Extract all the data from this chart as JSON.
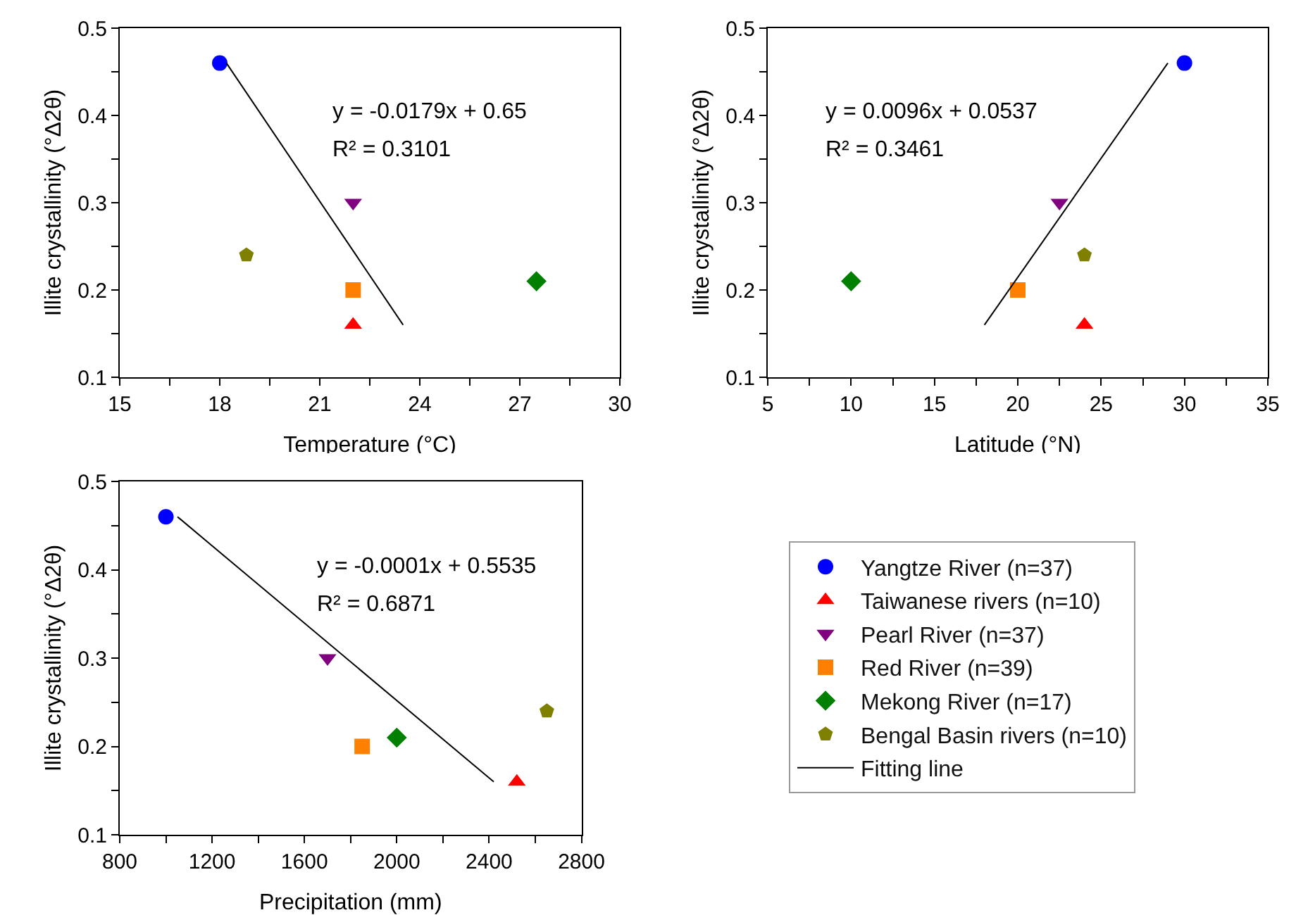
{
  "chart_data": [
    {
      "type": "scatter",
      "xlabel": "Temperature (°C)",
      "ylabel": "Illite crystallinity (°Δ2θ)",
      "xlim": [
        15,
        30
      ],
      "ylim": [
        0.1,
        0.5
      ],
      "xticks": [
        15,
        {
          "value": 16.5,
          "label": null
        },
        18,
        {
          "value": 19.5,
          "label": null
        },
        21,
        {
          "value": 22.5,
          "label": null
        },
        24,
        {
          "value": 25.5,
          "label": null
        },
        27,
        {
          "value": 28.5,
          "label": null
        },
        30
      ],
      "yticks": [
        0.1,
        {
          "value": 0.15,
          "label": null
        },
        0.2,
        {
          "value": 0.25,
          "label": null
        },
        0.3,
        {
          "value": 0.35,
          "label": null
        },
        0.4,
        {
          "value": 0.45,
          "label": null
        },
        0.5
      ],
      "grid": false,
      "legend": false,
      "annotations": [
        "y = -0.0179x + 0.65",
        "R² = 0.3101"
      ],
      "series": [
        {
          "color": "#0000ff",
          "marker": "circle",
          "x": [
            18
          ],
          "values": [
            0.46
          ]
        },
        {
          "color": "#ff0000",
          "marker": "triangle",
          "x": [
            22
          ],
          "values": [
            0.16
          ]
        },
        {
          "color": "#800080",
          "marker": "triangle-down",
          "x": [
            22
          ],
          "values": [
            0.3
          ]
        },
        {
          "color": "#ff8000",
          "marker": "square",
          "x": [
            22
          ],
          "values": [
            0.2
          ]
        },
        {
          "color": "#008000",
          "marker": "diamond",
          "x": [
            27.5
          ],
          "values": [
            0.21
          ]
        },
        {
          "color": "#808000",
          "x": [
            18.8
          ],
          "values": [
            0.24
          ]
        },
        {
          "type": "line",
          "color": "#000000",
          "marker": "none",
          "x": [
            18.2,
            23.5
          ],
          "values": [
            0.46,
            0.16
          ]
        }
      ]
    },
    {
      "type": "scatter",
      "xlabel": "Latitude (°N)",
      "ylabel": "Illite crystallinity (°Δ2θ)",
      "xlim": [
        5,
        35
      ],
      "ylim": [
        0.1,
        0.5
      ],
      "xticks": [
        5,
        {
          "value": 7.5,
          "label": null
        },
        10,
        {
          "value": 12.5,
          "label": null
        },
        15,
        {
          "value": 17.5,
          "label": null
        },
        20,
        {
          "value": 22.5,
          "label": null
        },
        25,
        {
          "value": 27.5,
          "label": null
        },
        30,
        {
          "value": 32.5,
          "label": null
        },
        35
      ],
      "yticks": [
        0.1,
        {
          "value": 0.15,
          "label": null
        },
        0.2,
        {
          "value": 0.25,
          "label": null
        },
        0.3,
        {
          "value": 0.35,
          "label": null
        },
        0.4,
        {
          "value": 0.45,
          "label": null
        },
        0.5
      ],
      "grid": false,
      "legend": false,
      "annotations": [
        "y = 0.0096x + 0.0537",
        "R² = 0.3461"
      ],
      "series": [
        {
          "color": "#0000ff",
          "marker": "circle",
          "x": [
            30
          ],
          "values": [
            0.46
          ]
        },
        {
          "color": "#ff0000",
          "marker": "triangle",
          "x": [
            24
          ],
          "values": [
            0.16
          ]
        },
        {
          "color": "#800080",
          "marker": "triangle-down",
          "x": [
            22.5
          ],
          "values": [
            0.3
          ]
        },
        {
          "color": "#ff8000",
          "marker": "square",
          "x": [
            20
          ],
          "values": [
            0.2
          ]
        },
        {
          "color": "#008000",
          "marker": "diamond",
          "x": [
            10
          ],
          "values": [
            0.21
          ]
        },
        {
          "color": "#808000",
          "x": [
            24
          ],
          "values": [
            0.24
          ]
        },
        {
          "type": "line",
          "color": "#000000",
          "marker": "none",
          "x": [
            18,
            29
          ],
          "values": [
            0.16,
            0.46
          ]
        }
      ]
    },
    {
      "type": "scatter",
      "xlabel": "Precipitation (mm)",
      "ylabel": "Illite crystallinity (°Δ2θ)",
      "xlim": [
        800,
        2800
      ],
      "ylim": [
        0.1,
        0.5
      ],
      "xticks": [
        800,
        {
          "value": 1000,
          "label": null
        },
        1200,
        {
          "value": 1400,
          "label": null
        },
        1600,
        {
          "value": 1800,
          "label": null
        },
        2000,
        {
          "value": 2200,
          "label": null
        },
        2400,
        {
          "value": 2600,
          "label": null
        },
        2800
      ],
      "yticks": [
        0.1,
        {
          "value": 0.15,
          "label": null
        },
        0.2,
        {
          "value": 0.25,
          "label": null
        },
        0.3,
        {
          "value": 0.35,
          "label": null
        },
        0.4,
        {
          "value": 0.45,
          "label": null
        },
        0.5
      ],
      "grid": false,
      "legend": "right",
      "annotations": [
        "y = -0.0001x + 0.5535",
        "R² = 0.6871"
      ],
      "series": [
        {
          "name": "Yangtze River (n=37)",
          "color": "#0000ff",
          "marker": "circle",
          "x": [
            1000
          ],
          "values": [
            0.46
          ]
        },
        {
          "name": "Taiwanese rivers (n=10)",
          "color": "#ff0000",
          "marker": "triangle",
          "x": [
            2520
          ],
          "values": [
            0.16
          ]
        },
        {
          "name": "Pearl River (n=37)",
          "color": "#800080",
          "marker": "triangle-down",
          "x": [
            1700
          ],
          "values": [
            0.3
          ]
        },
        {
          "name": "Red River (n=39)",
          "color": "#ff8000",
          "marker": "square",
          "x": [
            1850
          ],
          "values": [
            0.2
          ]
        },
        {
          "name": "Mekong River (n=17)",
          "color": "#008000",
          "marker": "diamond",
          "x": [
            2000
          ],
          "values": [
            0.21
          ]
        },
        {
          "name": "Bengal Basin rivers (n=10)",
          "color": "#808000",
          "x": [
            2650
          ],
          "values": [
            0.24
          ]
        },
        {
          "name": "Fitting line",
          "type": "line",
          "color": "#000000",
          "marker": "none",
          "x": [
            1050,
            2420
          ],
          "values": [
            0.46,
            0.16
          ]
        }
      ]
    }
  ]
}
